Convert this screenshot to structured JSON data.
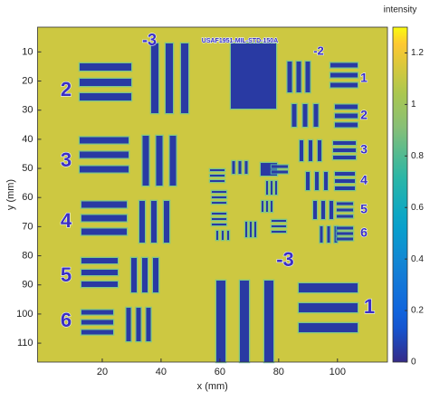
{
  "chart_data": {
    "type": "image",
    "xlabel": "x (mm)",
    "ylabel": "y (mm)",
    "colorbar_label": "intensity",
    "xlim": [
      -2,
      117
    ],
    "xticks": [
      20,
      40,
      60,
      80,
      100
    ],
    "ylim": [
      1.5,
      116.5
    ],
    "yticks": [
      10,
      20,
      30,
      40,
      50,
      60,
      70,
      80,
      90,
      100,
      110
    ],
    "y_reversed": true,
    "clim": [
      0,
      1.3
    ],
    "cticks": [
      0,
      0.2,
      0.4,
      0.6,
      0.8,
      1,
      1.2
    ],
    "colormap": "parula",
    "background_value": 1.12,
    "bar_value": 0.05,
    "annotations": [
      "-3",
      "USAF1951-MIL-STD-150A",
      "-2",
      "2",
      "3",
      "4",
      "5",
      "6",
      "1",
      "2",
      "3",
      "4",
      "5",
      "6",
      "-3",
      "1"
    ]
  }
}
